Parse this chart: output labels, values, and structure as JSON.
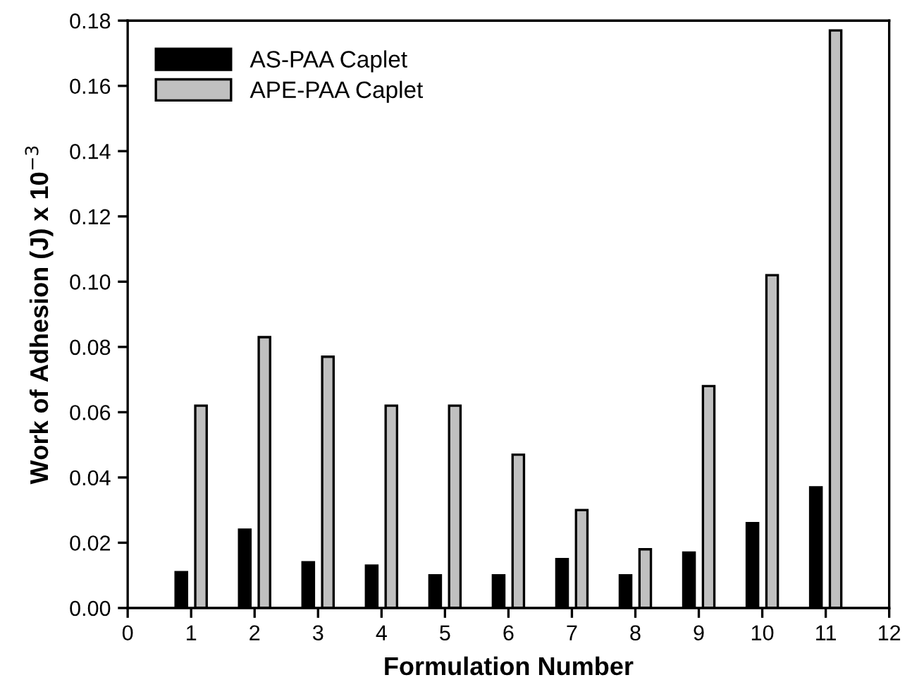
{
  "chart_data": {
    "type": "bar",
    "xlabel": "Formulation Number",
    "ylabel": "Work of Adhesion (J) x 10$^{−3}$",
    "x": [
      1,
      2,
      3,
      4,
      5,
      6,
      7,
      8,
      9,
      10,
      11
    ],
    "series": [
      {
        "name": "AS-PAA Caplet",
        "color": "#000000",
        "values": [
          0.011,
          0.024,
          0.014,
          0.013,
          0.01,
          0.01,
          0.015,
          0.01,
          0.017,
          0.026,
          0.037
        ]
      },
      {
        "name": "APE-PAA Caplet",
        "color": "#c0c0c0",
        "values": [
          0.062,
          0.083,
          0.077,
          0.062,
          0.062,
          0.047,
          0.03,
          0.018,
          0.068,
          0.102,
          0.177
        ]
      }
    ],
    "xlim": [
      0,
      12
    ],
    "xticks": [
      0,
      1,
      2,
      3,
      4,
      5,
      6,
      7,
      8,
      9,
      10,
      11,
      12
    ],
    "ylim": [
      0,
      0.18
    ],
    "yticks": [
      {
        "value": 0,
        "label": "0.00"
      },
      {
        "value": 0.02,
        "label": "0.02"
      },
      {
        "value": 0.04,
        "label": "0.04"
      },
      {
        "value": 0.06,
        "label": "0.06"
      },
      {
        "value": 0.08,
        "label": "0.08"
      },
      {
        "value": 0.1,
        "label": "0.10"
      },
      {
        "value": 0.12,
        "label": "0.12"
      },
      {
        "value": 0.14,
        "label": "0.14"
      },
      {
        "value": 0.16,
        "label": "0.16"
      },
      {
        "value": 0.18,
        "label": "0.18"
      }
    ],
    "grid": false,
    "legend": "top left"
  }
}
